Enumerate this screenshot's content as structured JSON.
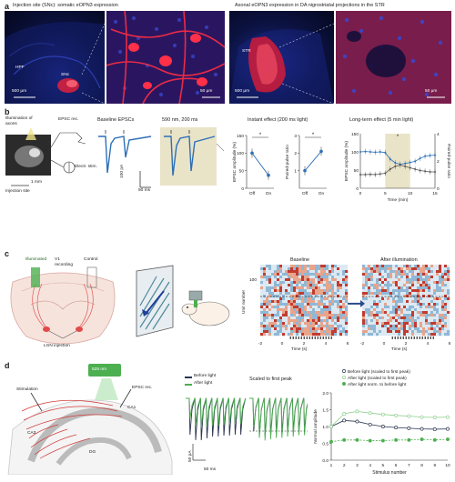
{
  "panel_a": {
    "label": "a",
    "left_title": "Injection site (SNc): somatic eOPN3 expression",
    "right_title": "Axonal eOPN3 expression in DA nigrostriatal projections in the STR",
    "hpf": "HPF",
    "snc": "SNc",
    "str": "STR",
    "scale_500_left": "500 μm",
    "scale_50_left": "50 μm",
    "scale_500_right": "500 μm",
    "scale_50_right": "50 μm"
  },
  "panel_b": {
    "label": "b",
    "illum": "Illumination of axons",
    "epsc_rec": "EPSC rec.",
    "electr_stim": "Electr. stim.",
    "injection_site": "Injection site",
    "scale_1mm": "1 mm",
    "baseline_title": "Baseline EPSCs",
    "light_title": "590 nm, 200 ms",
    "scale_pa": "100 pA",
    "scale_ms": "50 ms",
    "instant_title": "Instant effect (200 ms light)",
    "longterm_title": "Long-term effect (5 min light)",
    "epsc_amp_ylabel": "EPSC amplitude (%)",
    "ppr_ylabel": "Paired-pulse ratio",
    "time_xlabel": "Time (min)",
    "star": "*",
    "off": "Off",
    "on": "On"
  },
  "panel_c": {
    "label": "c",
    "illuminated": "Illuminated",
    "v1_recording": "V1 recording",
    "control": "Control",
    "lgn_injection": "LGN injection",
    "baseline": "Baseline",
    "after_illum": "After illumination",
    "unit_number": "Unit number",
    "time_s": "Time (s)",
    "unit_tick": "100"
  },
  "panel_d": {
    "label": "d",
    "wavelength": "525 nm",
    "stimulation": "Stimulation",
    "epsc_rec": "EPSC rec.",
    "ca1": "CA1",
    "ca3": "CA3",
    "dg": "DG",
    "legend_before": "Before light",
    "legend_after": "After light",
    "scaled_title": "Scaled to first peak",
    "scale_pa": "50 pA",
    "scale_ms": "50 ms",
    "stim_xlabel": "Stimulus number",
    "norm_ylabel": "Normal amplitude"
  },
  "chart_data": [
    {
      "type": "line",
      "title": "Instant effect (200 ms light)",
      "ylabel": "EPSC amplitude (%)",
      "categories": [
        "Off",
        "On"
      ],
      "series": [
        {
          "values": [
            100,
            37
          ]
        }
      ],
      "ylim": [
        0,
        150
      ]
    },
    {
      "type": "line",
      "ylabel": "Paired-pulse ratio",
      "categories": [
        "Off",
        "On"
      ],
      "series": [
        {
          "values": [
            1.0,
            2.1
          ]
        }
      ],
      "ylim": [
        0,
        3
      ]
    },
    {
      "type": "line",
      "title": "Long-term effect (5 min light)",
      "xlabel": "Time (min)",
      "ylabel": "EPSC amplitude (%)",
      "y2label": "Paired-pulse ratio",
      "x": [
        0,
        1,
        2,
        3,
        4,
        5,
        6,
        7,
        8,
        9,
        10,
        11,
        12,
        13,
        14,
        15
      ],
      "series": [
        {
          "values": [
            100,
            101,
            100,
            99,
            100,
            98,
            80,
            70,
            66,
            68,
            71,
            74,
            82,
            88,
            90,
            91
          ]
        },
        {
          "values": [
            1.0,
            1.0,
            1.02,
            1.0,
            1.05,
            1.1,
            1.4,
            1.6,
            1.7,
            1.6,
            1.5,
            1.4,
            1.3,
            1.25,
            1.2,
            1.2
          ]
        }
      ],
      "xlim": [
        0,
        15
      ],
      "ylim": [
        0,
        150
      ],
      "y2lim": [
        0,
        4
      ],
      "shaded": [
        5,
        10
      ]
    },
    {
      "type": "line",
      "xlabel": "Stimulus number",
      "ylabel": "Normal amplitude",
      "x": [
        1,
        2,
        3,
        4,
        5,
        6,
        7,
        8,
        9,
        10
      ],
      "series": [
        {
          "name": "Before light (scaled to first peak)",
          "values": [
            1.0,
            1.18,
            1.15,
            1.06,
            1.0,
            0.97,
            0.95,
            0.93,
            0.92,
            0.93
          ]
        },
        {
          "name": "After light (scaled to first peak)",
          "values": [
            1.0,
            1.38,
            1.45,
            1.4,
            1.36,
            1.33,
            1.31,
            1.28,
            1.27,
            1.28
          ]
        },
        {
          "name": "After light norm. to before light",
          "values": [
            0.55,
            0.6,
            0.6,
            0.58,
            0.58,
            0.6,
            0.6,
            0.62,
            0.6,
            0.62
          ]
        }
      ],
      "xlim": [
        1,
        10
      ],
      "ylim": [
        0,
        2.0
      ]
    }
  ]
}
